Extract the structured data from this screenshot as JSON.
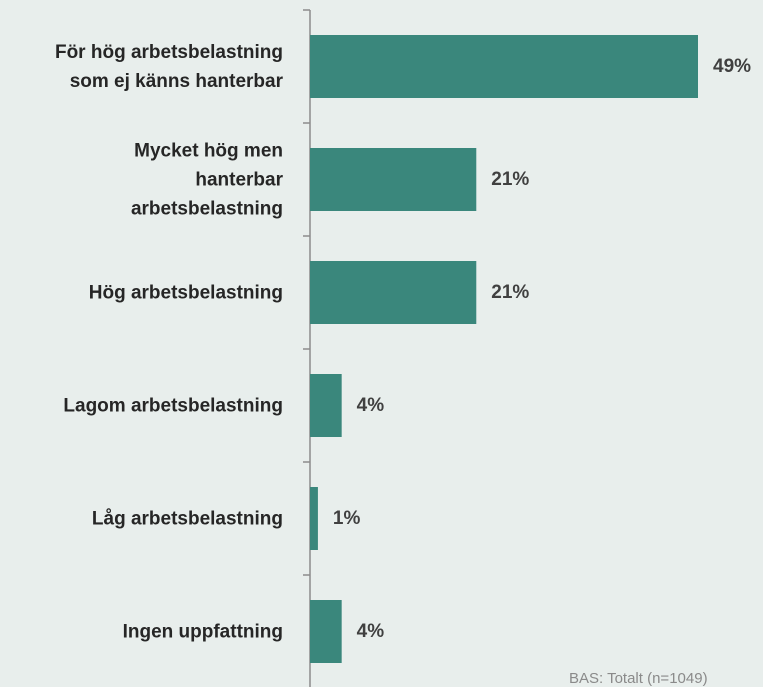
{
  "chart_data": {
    "type": "bar",
    "orientation": "horizontal",
    "categories": [
      "För hög arbetsbelastning\nsom ej känns hanterbar",
      "Mycket hög men\nhanterbar\narbetsbelastning",
      "Hög arbetsbelastning",
      "Lagom arbetsbelastning",
      "Låg arbetsbelastning",
      "Ingen uppfattning"
    ],
    "values": [
      49,
      21,
      21,
      4,
      1,
      4
    ],
    "value_labels": [
      "49%",
      "21%",
      "21%",
      "4%",
      "1%",
      "4%"
    ],
    "color": "#3a877c",
    "note": "BAS: Totalt (n=1049)"
  }
}
